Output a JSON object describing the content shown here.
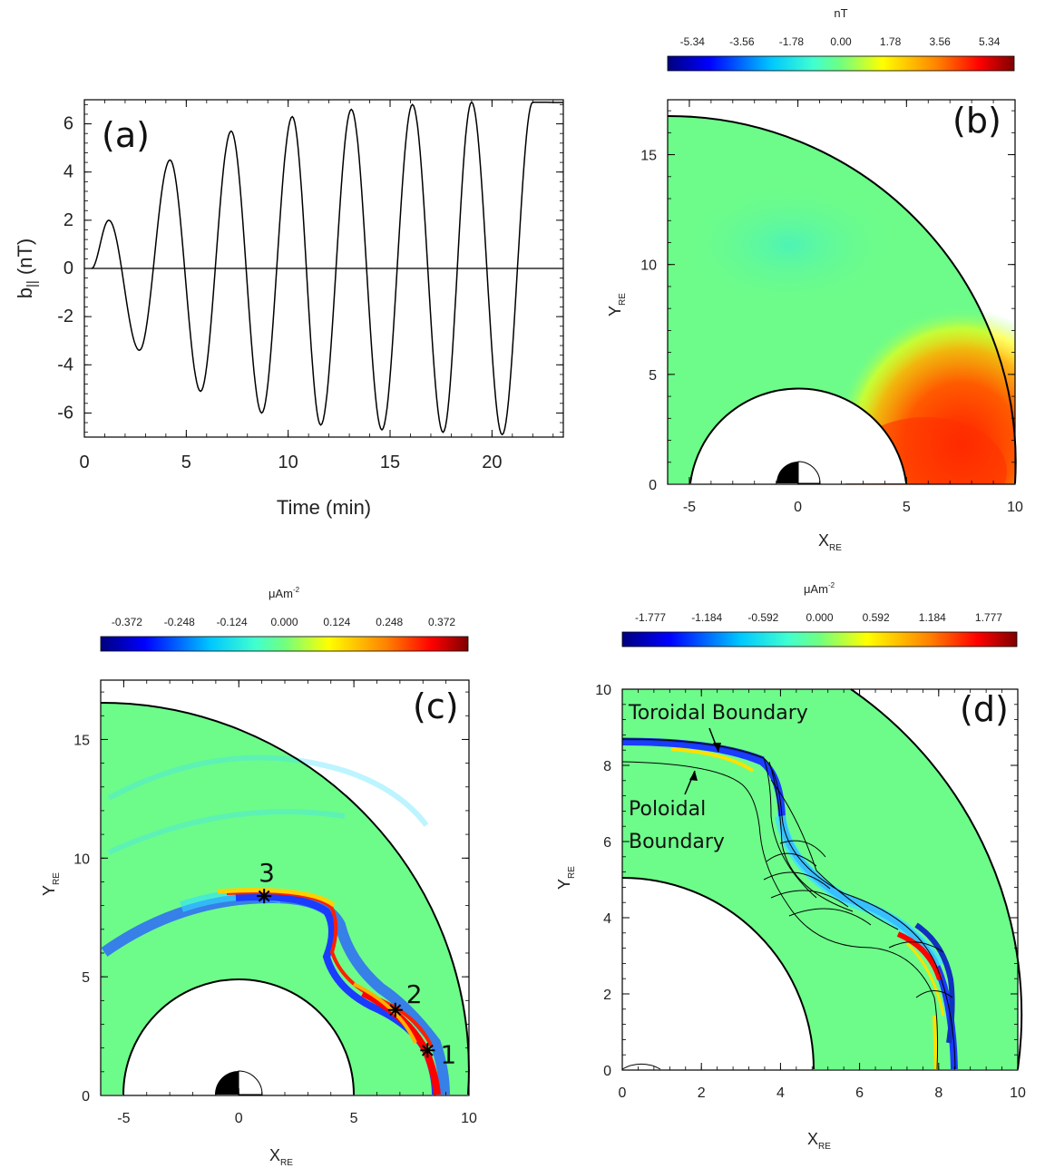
{
  "chart_data": [
    {
      "type": "line",
      "panel_label": "(a)",
      "xlabel": "Time (min)",
      "ylabel": "b",
      "ylabel_sub": "||",
      "ylabel_unit": "(nT)",
      "xlim": [
        0,
        23.5
      ],
      "ylim": [
        -7,
        7
      ],
      "xticks": [
        0,
        5,
        10,
        15,
        20
      ],
      "yticks": [
        -6,
        -4,
        -2,
        0,
        2,
        4,
        6
      ],
      "peaks": [
        {
          "t": 1.2,
          "b": 2.0
        },
        {
          "t": 2.7,
          "b": -3.4
        },
        {
          "t": 4.2,
          "b": 4.5
        },
        {
          "t": 5.7,
          "b": -5.1
        },
        {
          "t": 7.2,
          "b": 5.7
        },
        {
          "t": 8.7,
          "b": -6.0
        },
        {
          "t": 10.2,
          "b": 6.3
        },
        {
          "t": 11.6,
          "b": -6.5
        },
        {
          "t": 13.1,
          "b": 6.6
        },
        {
          "t": 14.6,
          "b": -6.7
        },
        {
          "t": 16.1,
          "b": 6.8
        },
        {
          "t": 17.6,
          "b": -6.8
        },
        {
          "t": 19.0,
          "b": 6.9
        },
        {
          "t": 20.5,
          "b": -6.9
        },
        {
          "t": 22.0,
          "b": 6.9
        }
      ]
    },
    {
      "type": "heatmap",
      "panel_label": "(b)",
      "colorbar_title": "nT",
      "colorbar_ticks": [
        "-5.34",
        "-3.56",
        "-1.78",
        "0.00",
        "1.78",
        "3.56",
        "5.34"
      ],
      "xlabel": "X",
      "xlabel_sub": "RE",
      "ylabel": "Y",
      "ylabel_sub": "RE",
      "xlim": [
        -6,
        10
      ],
      "ylim": [
        0,
        17.5
      ],
      "xticks": [
        -5,
        0,
        5,
        10
      ],
      "yticks": [
        0,
        5,
        10,
        15
      ],
      "inner_radius": 5,
      "outer_radius": 10
    },
    {
      "type": "heatmap",
      "panel_label": "(c)",
      "colorbar_title": "μAm",
      "colorbar_title_sup": "-2",
      "colorbar_ticks": [
        "-0.372",
        "-0.248",
        "-0.124",
        "0.000",
        "0.124",
        "0.248",
        "0.372"
      ],
      "xlabel": "X",
      "xlabel_sub": "RE",
      "ylabel": "Y",
      "ylabel_sub": "RE",
      "xlim": [
        -6,
        10
      ],
      "ylim": [
        0,
        17.5
      ],
      "xticks": [
        -5,
        0,
        5,
        10
      ],
      "yticks": [
        0,
        5,
        10,
        15
      ],
      "markers": [
        {
          "label": "1",
          "x": 8.2,
          "y": 1.9
        },
        {
          "label": "2",
          "x": 6.8,
          "y": 3.6
        },
        {
          "label": "3",
          "x": 1.1,
          "y": 8.4
        }
      ]
    },
    {
      "type": "heatmap",
      "panel_label": "(d)",
      "colorbar_title": "μAm",
      "colorbar_title_sup": "-2",
      "colorbar_ticks": [
        "-1.777",
        "-1.184",
        "-0.592",
        "0.000",
        "0.592",
        "1.184",
        "1.777"
      ],
      "xlabel": "X",
      "xlabel_sub": "RE",
      "ylabel": "Y",
      "ylabel_sub": "RE",
      "xlim": [
        0,
        10
      ],
      "ylim": [
        0,
        10
      ],
      "xticks": [
        0,
        2,
        4,
        6,
        8,
        10
      ],
      "yticks": [
        0,
        2,
        4,
        6,
        8,
        10
      ],
      "annotations": [
        "Toroidal Boundary",
        "Poloidal",
        "Boundary"
      ]
    }
  ],
  "colors": {
    "background_field": "#6dfc8a",
    "red": "#e01e00",
    "blue": "#1a3cff",
    "cyan": "#22e0ff",
    "yellow": "#f4f400"
  }
}
